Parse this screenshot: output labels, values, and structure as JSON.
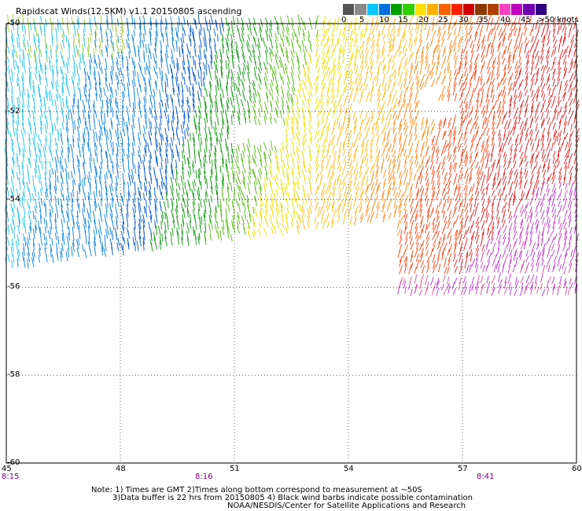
{
  "title": "Rapidscat Winds(12.5KM) v1.1 20150805 ascending",
  "legend": {
    "labels": [
      "0",
      "5",
      "10",
      "15",
      "20",
      "25",
      "30",
      "35",
      "40",
      "45",
      ">50 knots"
    ],
    "colors": [
      "#555555",
      "#8a8a8a",
      "#00c8ff",
      "#0070e0",
      "#00a000",
      "#30d000",
      "#ffe000",
      "#ffb000",
      "#ff6000",
      "#ff2000",
      "#d00000",
      "#8a3a00",
      "#b04000",
      "#ff40c0",
      "#c000c0",
      "#7000b0",
      "#300080"
    ]
  },
  "axes": {
    "lon_ticks": [
      "45",
      "48",
      "51",
      "54",
      "57",
      "60"
    ],
    "lat_ticks": [
      "-50",
      "-52",
      "-54",
      "-56",
      "-58",
      "-60"
    ]
  },
  "times": [
    "8:15",
    "8:16",
    "8:41"
  ],
  "notes": {
    "line1": "Note: 1) Times are GMT 2)Times along bottom correspond to measurement at ~50S",
    "line2": "3)Data buffer is 22 hrs from 20150805 4) Black wind barbs indicate possible contamination",
    "line3": "NOAA/NESDIS/Center for Satellite Applications and Research"
  }
}
